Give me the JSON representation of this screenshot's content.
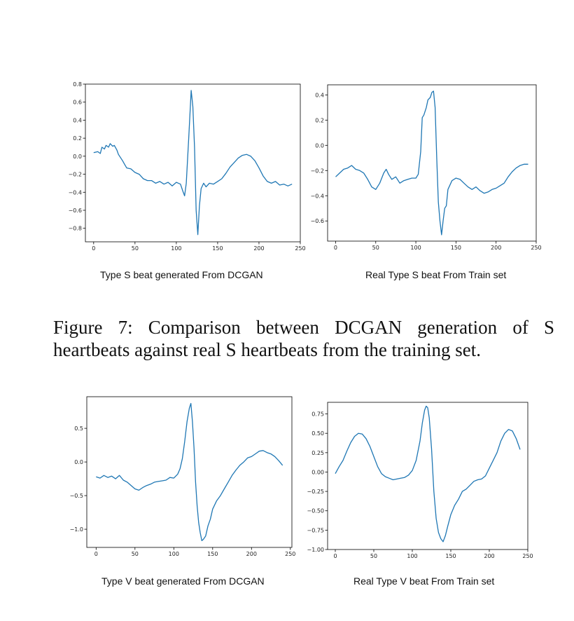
{
  "figure7": {
    "caption": "Figure 7: Comparison between DCGAN generation of S heartbeats against real S heartbeats from the training set."
  },
  "subcaptions": {
    "s_generated": "Type S beat generated From DCGAN",
    "s_real": "Real Type S beat From Train set",
    "v_generated": "Type V beat generated From DCGAN",
    "v_real": "Real Type V beat From Train set"
  },
  "line_color": "#1f77b4",
  "chart_data": [
    {
      "id": "s_generated",
      "type": "line",
      "title": "",
      "xlabel": "",
      "ylabel": "",
      "xlim": [
        -10,
        250
      ],
      "ylim": [
        -0.95,
        0.8
      ],
      "xticks": [
        0,
        50,
        100,
        150,
        200,
        250
      ],
      "yticks": [
        -0.8,
        -0.6,
        -0.4,
        -0.2,
        0.0,
        0.2,
        0.4,
        0.6,
        0.8
      ],
      "ytick_labels": [
        "−0.8",
        "−0.6",
        "−0.4",
        "−0.2",
        "0.0",
        "0.2",
        "0.4",
        "0.6",
        "0.8"
      ],
      "x": [
        0,
        5,
        8,
        10,
        13,
        15,
        18,
        20,
        23,
        25,
        28,
        30,
        35,
        38,
        40,
        45,
        50,
        55,
        60,
        65,
        70,
        75,
        80,
        85,
        90,
        95,
        100,
        105,
        108,
        110,
        112,
        115,
        118,
        120,
        122,
        124,
        126,
        128,
        130,
        133,
        136,
        140,
        145,
        150,
        155,
        160,
        165,
        170,
        175,
        180,
        185,
        190,
        195,
        200,
        205,
        210,
        215,
        220,
        225,
        230,
        235,
        240
      ],
      "y": [
        0.04,
        0.05,
        0.03,
        0.1,
        0.08,
        0.12,
        0.1,
        0.14,
        0.11,
        0.12,
        0.07,
        0.02,
        -0.05,
        -0.1,
        -0.13,
        -0.14,
        -0.18,
        -0.2,
        -0.25,
        -0.27,
        -0.27,
        -0.3,
        -0.28,
        -0.31,
        -0.29,
        -0.33,
        -0.29,
        -0.31,
        -0.39,
        -0.44,
        -0.3,
        0.2,
        0.73,
        0.55,
        0.1,
        -0.6,
        -0.87,
        -0.55,
        -0.36,
        -0.3,
        -0.34,
        -0.3,
        -0.31,
        -0.28,
        -0.25,
        -0.19,
        -0.12,
        -0.07,
        -0.02,
        0.01,
        0.02,
        0.0,
        -0.05,
        -0.13,
        -0.22,
        -0.28,
        -0.3,
        -0.28,
        -0.32,
        -0.31,
        -0.33,
        -0.31
      ]
    },
    {
      "id": "s_real",
      "type": "line",
      "title": "",
      "xlabel": "",
      "ylabel": "",
      "xlim": [
        -10,
        250
      ],
      "ylim": [
        -0.76,
        0.48
      ],
      "xticks": [
        0,
        50,
        100,
        150,
        200,
        250
      ],
      "yticks": [
        -0.6,
        -0.4,
        -0.2,
        0.0,
        0.2,
        0.4
      ],
      "ytick_labels": [
        "−0.6",
        "−0.4",
        "−0.2",
        "0.0",
        "0.2",
        "0.4"
      ],
      "x": [
        0,
        5,
        10,
        15,
        20,
        25,
        30,
        35,
        40,
        45,
        50,
        55,
        60,
        63,
        66,
        70,
        75,
        80,
        85,
        90,
        95,
        100,
        103,
        106,
        108,
        110,
        113,
        115,
        118,
        120,
        122,
        124,
        126,
        128,
        130,
        132,
        134,
        136,
        138,
        140,
        145,
        150,
        155,
        160,
        165,
        170,
        175,
        180,
        185,
        190,
        195,
        200,
        205,
        210,
        215,
        220,
        225,
        230,
        235,
        240
      ],
      "y": [
        -0.25,
        -0.22,
        -0.19,
        -0.18,
        -0.16,
        -0.19,
        -0.2,
        -0.22,
        -0.27,
        -0.33,
        -0.35,
        -0.3,
        -0.22,
        -0.19,
        -0.23,
        -0.27,
        -0.25,
        -0.3,
        -0.28,
        -0.27,
        -0.26,
        -0.26,
        -0.23,
        -0.05,
        0.22,
        0.24,
        0.3,
        0.36,
        0.38,
        0.42,
        0.43,
        0.3,
        -0.1,
        -0.45,
        -0.6,
        -0.71,
        -0.6,
        -0.5,
        -0.48,
        -0.35,
        -0.28,
        -0.26,
        -0.27,
        -0.3,
        -0.33,
        -0.35,
        -0.33,
        -0.36,
        -0.38,
        -0.37,
        -0.35,
        -0.34,
        -0.32,
        -0.3,
        -0.25,
        -0.21,
        -0.18,
        -0.16,
        -0.15,
        -0.15
      ]
    },
    {
      "id": "v_generated",
      "type": "line",
      "title": "",
      "xlabel": "",
      "ylabel": "",
      "xlim": [
        -12,
        252
      ],
      "ylim": [
        -1.27,
        0.97
      ],
      "xticks": [
        0,
        50,
        100,
        150,
        200,
        250
      ],
      "yticks": [
        -1.0,
        -0.5,
        0.0,
        0.5
      ],
      "ytick_labels": [
        "−1.0",
        "−0.5",
        "0.0",
        "0.5"
      ],
      "x": [
        0,
        5,
        10,
        15,
        20,
        25,
        30,
        35,
        40,
        45,
        50,
        55,
        60,
        65,
        70,
        75,
        80,
        85,
        90,
        95,
        100,
        105,
        108,
        111,
        114,
        117,
        120,
        122,
        124,
        126,
        128,
        130,
        132,
        134,
        136,
        138,
        141,
        144,
        147,
        150,
        155,
        160,
        165,
        170,
        175,
        180,
        185,
        190,
        195,
        200,
        205,
        210,
        215,
        220,
        225,
        230,
        235,
        240
      ],
      "y": [
        -0.22,
        -0.24,
        -0.2,
        -0.23,
        -0.21,
        -0.25,
        -0.2,
        -0.27,
        -0.3,
        -0.35,
        -0.4,
        -0.42,
        -0.38,
        -0.35,
        -0.33,
        -0.3,
        -0.29,
        -0.28,
        -0.27,
        -0.23,
        -0.24,
        -0.18,
        -0.1,
        0.05,
        0.3,
        0.6,
        0.8,
        0.87,
        0.6,
        0.2,
        -0.3,
        -0.65,
        -0.9,
        -1.05,
        -1.17,
        -1.15,
        -1.1,
        -0.95,
        -0.85,
        -0.7,
        -0.58,
        -0.5,
        -0.4,
        -0.3,
        -0.2,
        -0.12,
        -0.05,
        0.0,
        0.06,
        0.08,
        0.12,
        0.16,
        0.17,
        0.14,
        0.12,
        0.08,
        0.02,
        -0.05
      ]
    },
    {
      "id": "v_real",
      "type": "line",
      "title": "",
      "xlabel": "",
      "ylabel": "",
      "xlim": [
        -10,
        250
      ],
      "ylim": [
        -1.0,
        0.9
      ],
      "xticks": [
        0,
        50,
        100,
        150,
        200,
        250
      ],
      "yticks": [
        -1.0,
        -0.75,
        -0.5,
        -0.25,
        0.0,
        0.25,
        0.5,
        0.75
      ],
      "ytick_labels": [
        "−1.00",
        "−0.75",
        "−0.50",
        "−0.25",
        "0.00",
        "0.25",
        "0.50",
        "0.75"
      ],
      "x": [
        0,
        5,
        10,
        15,
        20,
        25,
        30,
        35,
        40,
        45,
        50,
        55,
        60,
        65,
        70,
        75,
        80,
        85,
        90,
        95,
        100,
        105,
        110,
        113,
        116,
        118,
        120,
        122,
        125,
        128,
        131,
        134,
        137,
        140,
        143,
        146,
        150,
        155,
        160,
        165,
        170,
        175,
        180,
        185,
        190,
        195,
        200,
        205,
        210,
        215,
        220,
        225,
        230,
        235,
        240
      ],
      "y": [
        -0.02,
        0.07,
        0.15,
        0.27,
        0.38,
        0.46,
        0.5,
        0.49,
        0.43,
        0.33,
        0.2,
        0.07,
        -0.02,
        -0.06,
        -0.08,
        -0.1,
        -0.09,
        -0.08,
        -0.07,
        -0.04,
        0.02,
        0.15,
        0.4,
        0.63,
        0.8,
        0.85,
        0.83,
        0.7,
        0.3,
        -0.25,
        -0.6,
        -0.78,
        -0.86,
        -0.9,
        -0.82,
        -0.7,
        -0.55,
        -0.43,
        -0.35,
        -0.25,
        -0.22,
        -0.17,
        -0.12,
        -0.1,
        -0.09,
        -0.05,
        0.05,
        0.15,
        0.25,
        0.4,
        0.5,
        0.55,
        0.53,
        0.43,
        0.29
      ]
    }
  ]
}
